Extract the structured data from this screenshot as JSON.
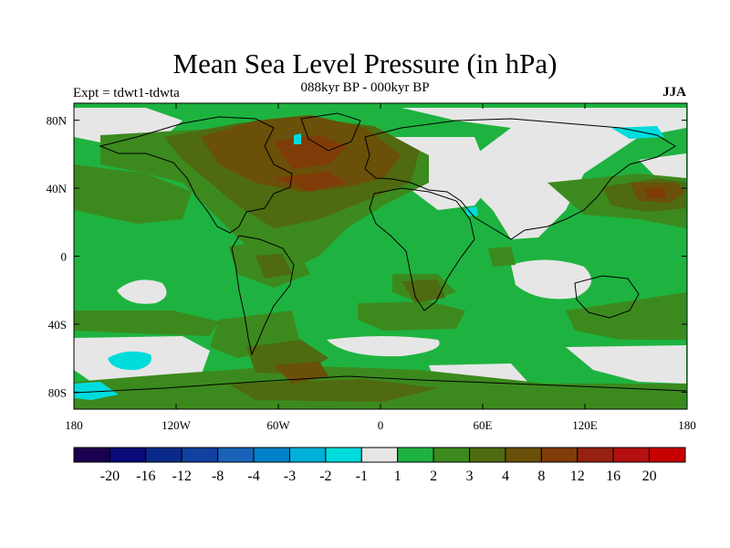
{
  "map": {
    "title": "Mean Sea Level Pressure (in hPa)",
    "left_label": "Expt = tdwt1-tdwta",
    "center_label": "088kyr BP - 000kyr BP",
    "right_label": "JJA",
    "lat_ticks": [
      "80N",
      "40N",
      "0",
      "40S",
      "80S"
    ],
    "lat_values": [
      80,
      40,
      0,
      -40,
      -80
    ],
    "lon_ticks": [
      "180",
      "120W",
      "60W",
      "0",
      "60E",
      "120E",
      "180"
    ],
    "lon_values": [
      -180,
      -120,
      -60,
      0,
      60,
      120,
      180
    ]
  },
  "colorbar": {
    "labels": [
      "-20",
      "-16",
      "-12",
      "-8",
      "-4",
      "-3",
      "-2",
      "-1",
      "1",
      "2",
      "3",
      "4",
      "8",
      "12",
      "16",
      "20"
    ],
    "colors": [
      "#1a0050",
      "#0a0a7a",
      "#0a2a8a",
      "#1040a0",
      "#1a62b8",
      "#0080c8",
      "#00b0d8",
      "#00dcdc",
      "#e6e6e6",
      "#1eb340",
      "#3c8a1e",
      "#4f6a10",
      "#6a5008",
      "#803c08",
      "#962010",
      "#b41010",
      "#c80000"
    ]
  }
}
